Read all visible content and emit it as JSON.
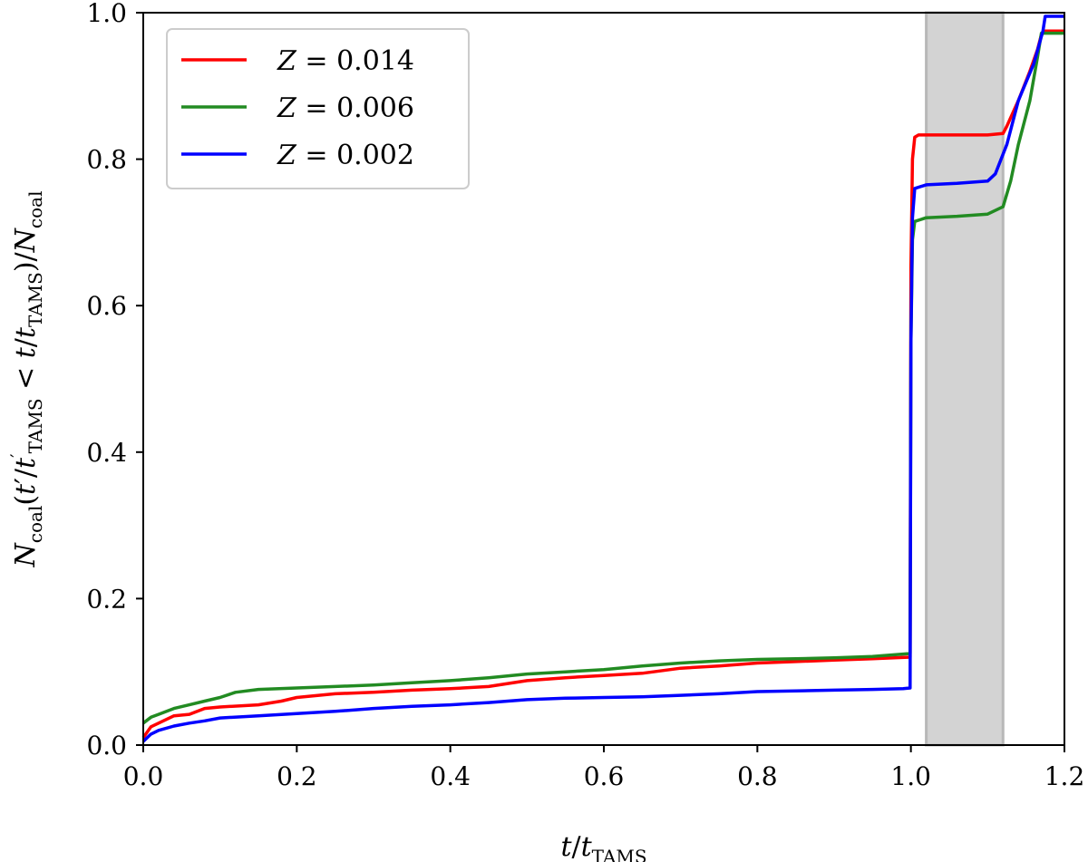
{
  "chart_data": {
    "type": "line",
    "xlabel": "t/t_TAMS",
    "ylabel": "N_coal(t'/t'_TAMS < t/t_TAMS)/N_coal",
    "xlim": [
      0.0,
      1.2
    ],
    "ylim": [
      0.0,
      1.0
    ],
    "xticks": [
      "0.0",
      "0.2",
      "0.4",
      "0.6",
      "0.8",
      "1.0",
      "1.2"
    ],
    "yticks": [
      "0.0",
      "0.2",
      "0.4",
      "0.6",
      "0.8",
      "1.0"
    ],
    "grid": false,
    "legend_position": "top-left",
    "shaded_region": {
      "x": [
        1.02,
        1.12
      ],
      "color": "#d3d3d3"
    },
    "series": [
      {
        "name": "Z = 0.014",
        "label_symbol": "Z",
        "label_value": "= 0.014",
        "color": "#ff0000",
        "x": [
          0.0,
          0.01,
          0.02,
          0.04,
          0.06,
          0.08,
          0.1,
          0.15,
          0.18,
          0.2,
          0.25,
          0.3,
          0.35,
          0.4,
          0.45,
          0.5,
          0.55,
          0.6,
          0.65,
          0.7,
          0.75,
          0.8,
          0.85,
          0.9,
          0.95,
          0.999,
          1.0,
          1.002,
          1.005,
          1.01,
          1.05,
          1.1,
          1.12,
          1.125,
          1.14,
          1.155,
          1.165,
          1.17,
          1.175,
          1.2
        ],
        "y": [
          0.01,
          0.025,
          0.03,
          0.04,
          0.042,
          0.05,
          0.052,
          0.055,
          0.06,
          0.065,
          0.07,
          0.072,
          0.075,
          0.077,
          0.08,
          0.088,
          0.092,
          0.095,
          0.098,
          0.105,
          0.108,
          0.112,
          0.114,
          0.116,
          0.118,
          0.12,
          0.65,
          0.8,
          0.83,
          0.833,
          0.833,
          0.833,
          0.835,
          0.845,
          0.88,
          0.92,
          0.95,
          0.97,
          0.975,
          0.975
        ]
      },
      {
        "name": "Z = 0.006",
        "label_symbol": "Z",
        "label_value": "= 0.006",
        "color": "#228b22",
        "x": [
          0.0,
          0.01,
          0.02,
          0.04,
          0.06,
          0.08,
          0.1,
          0.12,
          0.15,
          0.2,
          0.25,
          0.3,
          0.35,
          0.4,
          0.45,
          0.5,
          0.55,
          0.6,
          0.65,
          0.7,
          0.75,
          0.8,
          0.85,
          0.9,
          0.95,
          0.999,
          1.0,
          1.002,
          1.005,
          1.02,
          1.06,
          1.1,
          1.12,
          1.13,
          1.14,
          1.155,
          1.165,
          1.17,
          1.2
        ],
        "y": [
          0.03,
          0.038,
          0.042,
          0.05,
          0.055,
          0.06,
          0.065,
          0.072,
          0.076,
          0.078,
          0.08,
          0.082,
          0.085,
          0.088,
          0.092,
          0.097,
          0.1,
          0.103,
          0.108,
          0.112,
          0.115,
          0.117,
          0.118,
          0.119,
          0.121,
          0.125,
          0.55,
          0.69,
          0.715,
          0.72,
          0.722,
          0.725,
          0.735,
          0.77,
          0.82,
          0.88,
          0.94,
          0.972,
          0.972
        ]
      },
      {
        "name": "Z = 0.002",
        "label_symbol": "Z",
        "label_value": "= 0.002",
        "color": "#0000ff",
        "x": [
          0.0,
          0.01,
          0.02,
          0.04,
          0.06,
          0.08,
          0.1,
          0.15,
          0.2,
          0.25,
          0.3,
          0.35,
          0.4,
          0.45,
          0.5,
          0.55,
          0.6,
          0.65,
          0.7,
          0.75,
          0.8,
          0.85,
          0.9,
          0.95,
          0.99,
          0.999,
          1.0,
          1.002,
          1.005,
          1.02,
          1.06,
          1.1,
          1.11,
          1.125,
          1.14,
          1.16,
          1.172,
          1.175,
          1.2
        ],
        "y": [
          0.005,
          0.015,
          0.02,
          0.026,
          0.03,
          0.033,
          0.037,
          0.04,
          0.043,
          0.046,
          0.05,
          0.053,
          0.055,
          0.058,
          0.062,
          0.064,
          0.065,
          0.066,
          0.068,
          0.07,
          0.073,
          0.074,
          0.075,
          0.076,
          0.077,
          0.078,
          0.55,
          0.72,
          0.76,
          0.765,
          0.767,
          0.77,
          0.78,
          0.82,
          0.88,
          0.93,
          0.975,
          0.995,
          0.995
        ]
      }
    ]
  }
}
